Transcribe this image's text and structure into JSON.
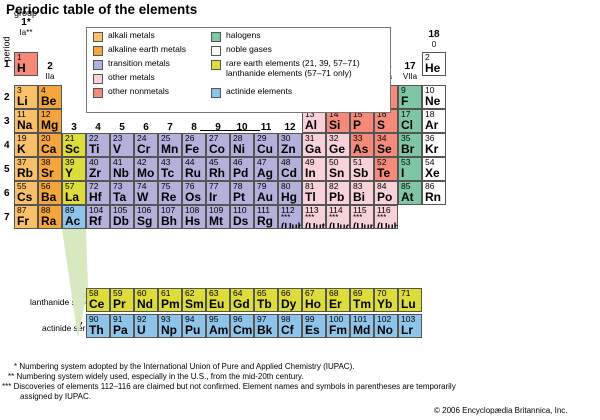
{
  "title": "Periodic table of the elements",
  "labels": {
    "group": "group",
    "period": "period",
    "lanthanide_series": "lanthanide series",
    "actinide_series": "actinide series",
    "group1_star": "1*",
    "group1_sub": "Ia**"
  },
  "groups": [
    {
      "num": "2",
      "sub": "IIa",
      "col": 2
    },
    {
      "num": "3",
      "sub": "IIIb",
      "col": 3
    },
    {
      "num": "4",
      "sub": "IVb",
      "col": 4
    },
    {
      "num": "5",
      "sub": "Vb",
      "col": 5
    },
    {
      "num": "6",
      "sub": "VIb",
      "col": 6
    },
    {
      "num": "7",
      "sub": "VIIb",
      "col": 7
    },
    {
      "num": "8",
      "sub": "",
      "col": 8
    },
    {
      "num": "9",
      "sub": "VIIIb",
      "col": 9
    },
    {
      "num": "10",
      "sub": "",
      "col": 10
    },
    {
      "num": "11",
      "sub": "Ib",
      "col": 11
    },
    {
      "num": "12",
      "sub": "IIb",
      "col": 12
    },
    {
      "num": "13",
      "sub": "IIIa",
      "col": 13
    },
    {
      "num": "14",
      "sub": "IVa",
      "col": 14
    },
    {
      "num": "15",
      "sub": "Va",
      "col": 15
    },
    {
      "num": "16",
      "sub": "VIa",
      "col": 16
    },
    {
      "num": "17",
      "sub": "VIIa",
      "col": 17
    },
    {
      "num": "18",
      "sub": "0",
      "col": 18
    }
  ],
  "periods": [
    "1",
    "2",
    "3",
    "4",
    "5",
    "6",
    "7"
  ],
  "series_markers": [
    "6",
    "7"
  ],
  "legend": [
    {
      "key": "alkali",
      "label": "alkali metals",
      "color": "#f9c06a"
    },
    {
      "key": "alkaline",
      "label": "alkaline earth metals",
      "color": "#f4a53c"
    },
    {
      "key": "transition",
      "label": "transition metals",
      "color": "#b4b0dc"
    },
    {
      "key": "other_metal",
      "label": "other metals",
      "color": "#f8d2d8"
    },
    {
      "key": "nonmetal",
      "label": "other nonmetals",
      "color": "#f58a7a"
    },
    {
      "key": "halogen",
      "label": "halogens",
      "color": "#7fc6a4"
    },
    {
      "key": "noble",
      "label": "noble gases",
      "color": "#ffffff"
    },
    {
      "key": "rare",
      "label": "rare earth elements (21, 39, 57–71)",
      "label2": "lanthanide elements (57–71 only)",
      "color": "#dcdc3a"
    },
    {
      "key": "actinide",
      "label": "actinide elements",
      "color": "#8ec4ea"
    }
  ],
  "colors": {
    "alkali": "#f9c06a",
    "alkaline": "#f4a53c",
    "transition": "#b4b0dc",
    "other_metal": "#f8d2d8",
    "nonmetal": "#f58a7a",
    "halogen": "#7fc6a4",
    "noble": "#ffffff",
    "rare": "#dcdc3a",
    "actinide": "#8ec4ea",
    "transition_rare": "#c4c87a",
    "alkali_hydrogen": "#f58a7a"
  },
  "elements": [
    {
      "z": "1",
      "s": "H",
      "r": 1,
      "c": 1,
      "cat": "nonmetal"
    },
    {
      "z": "2",
      "s": "He",
      "r": 1,
      "c": 18,
      "cat": "noble"
    },
    {
      "z": "3",
      "s": "Li",
      "r": 2,
      "c": 1,
      "cat": "alkali"
    },
    {
      "z": "4",
      "s": "Be",
      "r": 2,
      "c": 2,
      "cat": "alkaline"
    },
    {
      "z": "5",
      "s": "B",
      "r": 2,
      "c": 13,
      "cat": "nonmetal"
    },
    {
      "z": "6",
      "s": "C",
      "r": 2,
      "c": 14,
      "cat": "nonmetal"
    },
    {
      "z": "7",
      "s": "N",
      "r": 2,
      "c": 15,
      "cat": "nonmetal"
    },
    {
      "z": "8",
      "s": "O",
      "r": 2,
      "c": 16,
      "cat": "nonmetal"
    },
    {
      "z": "9",
      "s": "F",
      "r": 2,
      "c": 17,
      "cat": "halogen"
    },
    {
      "z": "10",
      "s": "Ne",
      "r": 2,
      "c": 18,
      "cat": "noble"
    },
    {
      "z": "11",
      "s": "Na",
      "r": 3,
      "c": 1,
      "cat": "alkali"
    },
    {
      "z": "12",
      "s": "Mg",
      "r": 3,
      "c": 2,
      "cat": "alkaline"
    },
    {
      "z": "13",
      "s": "Al",
      "r": 3,
      "c": 13,
      "cat": "other_metal"
    },
    {
      "z": "14",
      "s": "Si",
      "r": 3,
      "c": 14,
      "cat": "nonmetal"
    },
    {
      "z": "15",
      "s": "P",
      "r": 3,
      "c": 15,
      "cat": "nonmetal"
    },
    {
      "z": "16",
      "s": "S",
      "r": 3,
      "c": 16,
      "cat": "nonmetal"
    },
    {
      "z": "17",
      "s": "Cl",
      "r": 3,
      "c": 17,
      "cat": "halogen"
    },
    {
      "z": "18",
      "s": "Ar",
      "r": 3,
      "c": 18,
      "cat": "noble"
    },
    {
      "z": "19",
      "s": "K",
      "r": 4,
      "c": 1,
      "cat": "alkali"
    },
    {
      "z": "20",
      "s": "Ca",
      "r": 4,
      "c": 2,
      "cat": "alkaline"
    },
    {
      "z": "21",
      "s": "Sc",
      "r": 4,
      "c": 3,
      "cat": "rare"
    },
    {
      "z": "22",
      "s": "Ti",
      "r": 4,
      "c": 4,
      "cat": "transition"
    },
    {
      "z": "23",
      "s": "V",
      "r": 4,
      "c": 5,
      "cat": "transition"
    },
    {
      "z": "24",
      "s": "Cr",
      "r": 4,
      "c": 6,
      "cat": "transition"
    },
    {
      "z": "25",
      "s": "Mn",
      "r": 4,
      "c": 7,
      "cat": "transition"
    },
    {
      "z": "26",
      "s": "Fe",
      "r": 4,
      "c": 8,
      "cat": "transition"
    },
    {
      "z": "27",
      "s": "Co",
      "r": 4,
      "c": 9,
      "cat": "transition"
    },
    {
      "z": "28",
      "s": "Ni",
      "r": 4,
      "c": 10,
      "cat": "transition"
    },
    {
      "z": "29",
      "s": "Cu",
      "r": 4,
      "c": 11,
      "cat": "transition"
    },
    {
      "z": "30",
      "s": "Zn",
      "r": 4,
      "c": 12,
      "cat": "transition"
    },
    {
      "z": "31",
      "s": "Ga",
      "r": 4,
      "c": 13,
      "cat": "other_metal"
    },
    {
      "z": "32",
      "s": "Ge",
      "r": 4,
      "c": 14,
      "cat": "other_metal"
    },
    {
      "z": "33",
      "s": "As",
      "r": 4,
      "c": 15,
      "cat": "nonmetal"
    },
    {
      "z": "34",
      "s": "Se",
      "r": 4,
      "c": 16,
      "cat": "nonmetal"
    },
    {
      "z": "35",
      "s": "Br",
      "r": 4,
      "c": 17,
      "cat": "halogen"
    },
    {
      "z": "36",
      "s": "Kr",
      "r": 4,
      "c": 18,
      "cat": "noble"
    },
    {
      "z": "37",
      "s": "Rb",
      "r": 5,
      "c": 1,
      "cat": "alkali"
    },
    {
      "z": "38",
      "s": "Sr",
      "r": 5,
      "c": 2,
      "cat": "alkaline"
    },
    {
      "z": "39",
      "s": "Y",
      "r": 5,
      "c": 3,
      "cat": "rare"
    },
    {
      "z": "40",
      "s": "Zr",
      "r": 5,
      "c": 4,
      "cat": "transition"
    },
    {
      "z": "41",
      "s": "Nb",
      "r": 5,
      "c": 5,
      "cat": "transition"
    },
    {
      "z": "42",
      "s": "Mo",
      "r": 5,
      "c": 6,
      "cat": "transition"
    },
    {
      "z": "43",
      "s": "Tc",
      "r": 5,
      "c": 7,
      "cat": "transition"
    },
    {
      "z": "44",
      "s": "Ru",
      "r": 5,
      "c": 8,
      "cat": "transition"
    },
    {
      "z": "45",
      "s": "Rh",
      "r": 5,
      "c": 9,
      "cat": "transition"
    },
    {
      "z": "46",
      "s": "Pd",
      "r": 5,
      "c": 10,
      "cat": "transition"
    },
    {
      "z": "47",
      "s": "Ag",
      "r": 5,
      "c": 11,
      "cat": "transition"
    },
    {
      "z": "48",
      "s": "Cd",
      "r": 5,
      "c": 12,
      "cat": "transition"
    },
    {
      "z": "49",
      "s": "In",
      "r": 5,
      "c": 13,
      "cat": "other_metal"
    },
    {
      "z": "50",
      "s": "Sn",
      "r": 5,
      "c": 14,
      "cat": "other_metal"
    },
    {
      "z": "51",
      "s": "Sb",
      "r": 5,
      "c": 15,
      "cat": "other_metal"
    },
    {
      "z": "52",
      "s": "Te",
      "r": 5,
      "c": 16,
      "cat": "nonmetal"
    },
    {
      "z": "53",
      "s": "I",
      "r": 5,
      "c": 17,
      "cat": "halogen"
    },
    {
      "z": "54",
      "s": "Xe",
      "r": 5,
      "c": 18,
      "cat": "noble"
    },
    {
      "z": "55",
      "s": "Cs",
      "r": 6,
      "c": 1,
      "cat": "alkali"
    },
    {
      "z": "56",
      "s": "Ba",
      "r": 6,
      "c": 2,
      "cat": "alkaline"
    },
    {
      "z": "57",
      "s": "La",
      "r": 6,
      "c": 3,
      "cat": "rare"
    },
    {
      "z": "72",
      "s": "Hf",
      "r": 6,
      "c": 4,
      "cat": "transition"
    },
    {
      "z": "73",
      "s": "Ta",
      "r": 6,
      "c": 5,
      "cat": "transition"
    },
    {
      "z": "74",
      "s": "W",
      "r": 6,
      "c": 6,
      "cat": "transition"
    },
    {
      "z": "75",
      "s": "Re",
      "r": 6,
      "c": 7,
      "cat": "transition"
    },
    {
      "z": "76",
      "s": "Os",
      "r": 6,
      "c": 8,
      "cat": "transition"
    },
    {
      "z": "77",
      "s": "Ir",
      "r": 6,
      "c": 9,
      "cat": "transition"
    },
    {
      "z": "78",
      "s": "Pt",
      "r": 6,
      "c": 10,
      "cat": "transition"
    },
    {
      "z": "79",
      "s": "Au",
      "r": 6,
      "c": 11,
      "cat": "transition"
    },
    {
      "z": "80",
      "s": "Hg",
      "r": 6,
      "c": 12,
      "cat": "transition"
    },
    {
      "z": "81",
      "s": "Tl",
      "r": 6,
      "c": 13,
      "cat": "other_metal"
    },
    {
      "z": "82",
      "s": "Pb",
      "r": 6,
      "c": 14,
      "cat": "other_metal"
    },
    {
      "z": "83",
      "s": "Bi",
      "r": 6,
      "c": 15,
      "cat": "other_metal"
    },
    {
      "z": "84",
      "s": "Po",
      "r": 6,
      "c": 16,
      "cat": "other_metal"
    },
    {
      "z": "85",
      "s": "At",
      "r": 6,
      "c": 17,
      "cat": "halogen"
    },
    {
      "z": "86",
      "s": "Rn",
      "r": 6,
      "c": 18,
      "cat": "noble"
    },
    {
      "z": "87",
      "s": "Fr",
      "r": 7,
      "c": 1,
      "cat": "alkali"
    },
    {
      "z": "88",
      "s": "Ra",
      "r": 7,
      "c": 2,
      "cat": "alkaline"
    },
    {
      "z": "89",
      "s": "Ac",
      "r": 7,
      "c": 3,
      "cat": "actinide"
    },
    {
      "z": "104",
      "s": "Rf",
      "r": 7,
      "c": 4,
      "cat": "transition"
    },
    {
      "z": "105",
      "s": "Db",
      "r": 7,
      "c": 5,
      "cat": "transition"
    },
    {
      "z": "106",
      "s": "Sg",
      "r": 7,
      "c": 6,
      "cat": "transition"
    },
    {
      "z": "107",
      "s": "Bh",
      "r": 7,
      "c": 7,
      "cat": "transition"
    },
    {
      "z": "108",
      "s": "Hs",
      "r": 7,
      "c": 8,
      "cat": "transition"
    },
    {
      "z": "109",
      "s": "Mt",
      "r": 7,
      "c": 9,
      "cat": "transition"
    },
    {
      "z": "110",
      "s": "Ds",
      "r": 7,
      "c": 10,
      "cat": "transition"
    },
    {
      "z": "111",
      "s": "Rg",
      "r": 7,
      "c": 11,
      "cat": "transition"
    },
    {
      "z": "112",
      "s": "(Uub)",
      "r": 7,
      "c": 12,
      "cat": "transition",
      "star": "***"
    },
    {
      "z": "113",
      "s": "(Uut)",
      "r": 7,
      "c": 13,
      "cat": "other_metal",
      "star": "***"
    },
    {
      "z": "114",
      "s": "(Uuq)",
      "r": 7,
      "c": 14,
      "cat": "other_metal",
      "star": "***"
    },
    {
      "z": "115",
      "s": "(Uup)",
      "r": 7,
      "c": 15,
      "cat": "other_metal",
      "star": "***"
    },
    {
      "z": "116",
      "s": "(Uuh)",
      "r": 7,
      "c": 16,
      "cat": "other_metal",
      "star": "***"
    },
    {
      "z": "58",
      "s": "Ce",
      "r": 9,
      "c": 4,
      "cat": "rare"
    },
    {
      "z": "59",
      "s": "Pr",
      "r": 9,
      "c": 5,
      "cat": "rare"
    },
    {
      "z": "60",
      "s": "Nd",
      "r": 9,
      "c": 6,
      "cat": "rare"
    },
    {
      "z": "61",
      "s": "Pm",
      "r": 9,
      "c": 7,
      "cat": "rare"
    },
    {
      "z": "62",
      "s": "Sm",
      "r": 9,
      "c": 8,
      "cat": "rare"
    },
    {
      "z": "63",
      "s": "Eu",
      "r": 9,
      "c": 9,
      "cat": "rare"
    },
    {
      "z": "64",
      "s": "Gd",
      "r": 9,
      "c": 10,
      "cat": "rare"
    },
    {
      "z": "65",
      "s": "Tb",
      "r": 9,
      "c": 11,
      "cat": "rare"
    },
    {
      "z": "66",
      "s": "Dy",
      "r": 9,
      "c": 12,
      "cat": "rare"
    },
    {
      "z": "67",
      "s": "Ho",
      "r": 9,
      "c": 13,
      "cat": "rare"
    },
    {
      "z": "68",
      "s": "Er",
      "r": 9,
      "c": 14,
      "cat": "rare"
    },
    {
      "z": "69",
      "s": "Tm",
      "r": 9,
      "c": 15,
      "cat": "rare"
    },
    {
      "z": "70",
      "s": "Yb",
      "r": 9,
      "c": 16,
      "cat": "rare"
    },
    {
      "z": "71",
      "s": "Lu",
      "r": 9,
      "c": 17,
      "cat": "rare"
    },
    {
      "z": "90",
      "s": "Th",
      "r": 10,
      "c": 4,
      "cat": "actinide"
    },
    {
      "z": "91",
      "s": "Pa",
      "r": 10,
      "c": 5,
      "cat": "actinide"
    },
    {
      "z": "92",
      "s": "U",
      "r": 10,
      "c": 6,
      "cat": "actinide"
    },
    {
      "z": "93",
      "s": "Np",
      "r": 10,
      "c": 7,
      "cat": "actinide"
    },
    {
      "z": "94",
      "s": "Pu",
      "r": 10,
      "c": 8,
      "cat": "actinide"
    },
    {
      "z": "95",
      "s": "Am",
      "r": 10,
      "c": 9,
      "cat": "actinide"
    },
    {
      "z": "96",
      "s": "Cm",
      "r": 10,
      "c": 10,
      "cat": "actinide"
    },
    {
      "z": "97",
      "s": "Bk",
      "r": 10,
      "c": 11,
      "cat": "actinide"
    },
    {
      "z": "98",
      "s": "Cf",
      "r": 10,
      "c": 12,
      "cat": "actinide"
    },
    {
      "z": "99",
      "s": "Es",
      "r": 10,
      "c": 13,
      "cat": "actinide"
    },
    {
      "z": "100",
      "s": "Fm",
      "r": 10,
      "c": 14,
      "cat": "actinide"
    },
    {
      "z": "101",
      "s": "Md",
      "r": 10,
      "c": 15,
      "cat": "actinide"
    },
    {
      "z": "102",
      "s": "No",
      "r": 10,
      "c": 16,
      "cat": "actinide"
    },
    {
      "z": "103",
      "s": "Lr",
      "r": 10,
      "c": 17,
      "cat": "actinide"
    }
  ],
  "footnotes": [
    "* Numbering system adopted by the International Union of Pure and Applied Chemistry (IUPAC).",
    "** Numbering system widely used, especially in the U.S., from the mid-20th century.",
    "*** Discoveries of elements 112–116 are claimed but not confirmed. Element names and symbols in parentheses are temporarily",
    "assigned by IUPAC."
  ],
  "copyright": "© 2006 Encyclopædia Britannica, Inc."
}
